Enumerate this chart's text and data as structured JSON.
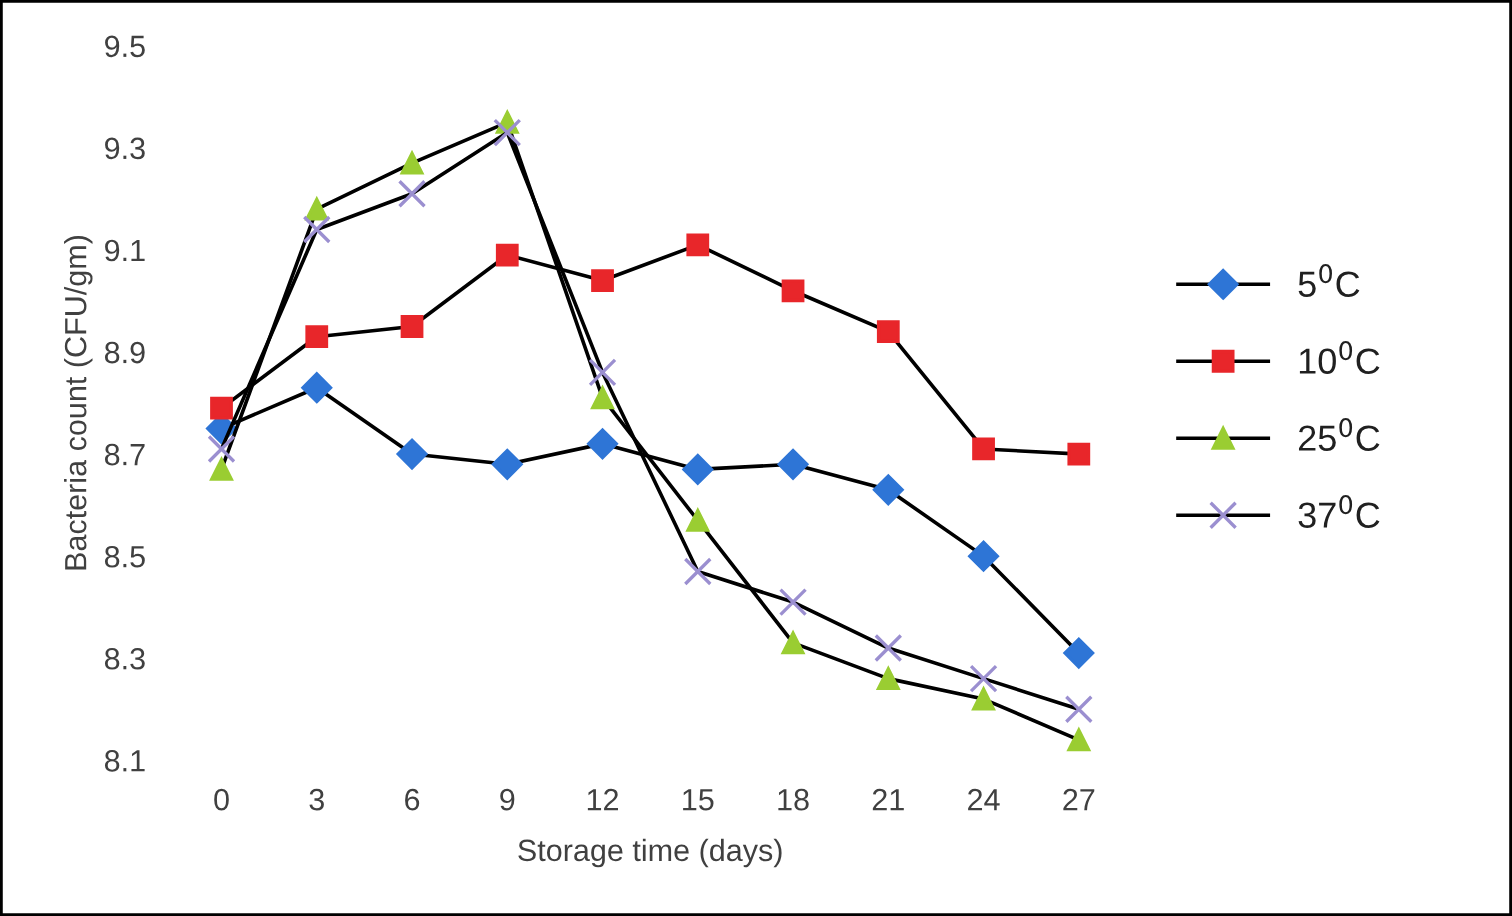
{
  "chart_data": {
    "type": "line",
    "xlabel": "Storage time (days)",
    "ylabel": "Bacteria count (CFU/gm)",
    "categories": [
      "0",
      "3",
      "6",
      "9",
      "12",
      "15",
      "18",
      "21",
      "24",
      "27"
    ],
    "ylim": [
      8.1,
      9.5
    ],
    "yticks": [
      8.1,
      8.3,
      8.5,
      8.7,
      8.9,
      9.1,
      9.3,
      9.5
    ],
    "grid": false,
    "legend": "right",
    "series": [
      {
        "name": "5$^{0}$C",
        "color": "#2e75d6",
        "marker": "diamond",
        "values": [
          8.75,
          8.83,
          8.7,
          8.68,
          8.72,
          8.67,
          8.68,
          8.63,
          8.5,
          8.31
        ]
      },
      {
        "name": "10$^{0}$C",
        "color": "#e8262a",
        "marker": "square",
        "values": [
          8.79,
          8.93,
          8.95,
          9.09,
          9.04,
          9.11,
          9.02,
          8.94,
          8.71,
          8.7
        ]
      },
      {
        "name": "25$^{0}$C",
        "color": "#9acd32",
        "marker": "triangle",
        "values": [
          8.67,
          9.18,
          9.27,
          9.35,
          8.81,
          8.57,
          8.33,
          8.26,
          8.22,
          8.14
        ]
      },
      {
        "name": "37$^{0}$C",
        "color": "#9b8fd0",
        "marker": "cross",
        "values": [
          8.71,
          9.14,
          9.21,
          9.33,
          8.86,
          8.47,
          8.41,
          8.32,
          8.26,
          8.2
        ]
      }
    ]
  }
}
